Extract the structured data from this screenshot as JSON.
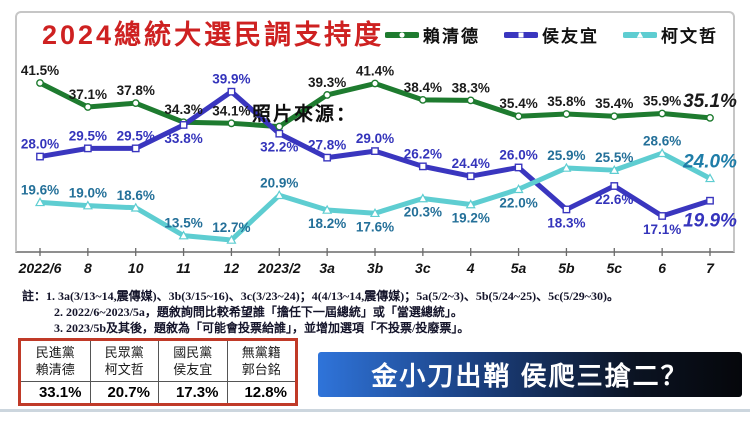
{
  "title": "2024總統大選民調支持度",
  "watermark": "照片來源：",
  "chart_data": {
    "type": "line",
    "title": "2024總統大選民調支持度",
    "categories": [
      "2022/6",
      "8",
      "10",
      "11",
      "12",
      "2023/2",
      "3a",
      "3b",
      "3c",
      "4",
      "5a",
      "5b",
      "5c",
      "6",
      "7"
    ],
    "series": [
      {
        "name": "賴清德",
        "color": "#1e7b2f",
        "label_color": "#1b1b1b",
        "final_label_color": "#1b1b1b",
        "marker": "circle",
        "values": [
          41.5,
          37.1,
          37.8,
          34.3,
          34.1,
          33.5,
          39.3,
          41.4,
          38.4,
          38.3,
          35.4,
          35.8,
          35.4,
          35.9,
          35.1
        ],
        "label_sides": [
          "a",
          "a",
          "a",
          "a",
          "a",
          "a",
          "a",
          "a",
          "a",
          "a",
          "a",
          "a",
          "a",
          "a",
          "a"
        ],
        "hidden_label_indices": [
          5
        ]
      },
      {
        "name": "侯友宜",
        "color": "#3a36bf",
        "label_color": "#3434bb",
        "final_label_color": "#3534bd",
        "marker": "square",
        "values": [
          28.0,
          29.5,
          29.5,
          33.8,
          39.9,
          32.2,
          27.8,
          29.0,
          26.2,
          24.4,
          26.0,
          18.3,
          22.6,
          17.1,
          19.9
        ],
        "label_sides": [
          "a",
          "a",
          "a",
          "b",
          "a",
          "b",
          "a",
          "a",
          "a",
          "a",
          "a",
          "b",
          "b",
          "b",
          "b"
        ],
        "hidden_label_indices": []
      },
      {
        "name": "柯文哲",
        "color": "#5ecdd1",
        "label_color": "#247099",
        "final_label_color": "#1f7da8",
        "marker": "triangle",
        "values": [
          19.6,
          19.0,
          18.6,
          13.5,
          12.7,
          20.9,
          18.2,
          17.6,
          20.3,
          19.2,
          22.0,
          25.9,
          25.5,
          28.6,
          24.0
        ],
        "label_sides": [
          "a",
          "a",
          "a",
          "a",
          "a",
          "a",
          "b",
          "b",
          "b",
          "b",
          "b",
          "a",
          "a",
          "a",
          "a"
        ],
        "hidden_label_indices": []
      }
    ],
    "ylim": [
      10,
      45
    ],
    "grid": false,
    "legend_position": "top-right",
    "y_axis_labels": false
  },
  "notes": {
    "line1": "註：1. 3a(3/13~14,震傳媒)、3b(3/15~16)、3c(3/23~24)；4(4/13~14,震傳媒)；5a(5/2~3)、5b(5/24~25)、5c(5/29~30)。",
    "line2": "2. 2022/6~2023/5a，題敘詢問比較希望誰「擔任下一屆總統」或「當選總統」。",
    "line3": "3. 2023/5b及其後，題敘為「可能會投票給誰」，並增加選項「不投票/投廢票」。"
  },
  "summary_table": {
    "columns": [
      {
        "party": "民進黨",
        "candidate": "賴清德",
        "value": "33.1%"
      },
      {
        "party": "民眾黨",
        "candidate": "柯文哲",
        "value": "20.7%"
      },
      {
        "party": "國民黨",
        "candidate": "侯友宜",
        "value": "17.3%"
      },
      {
        "party": "無黨籍",
        "candidate": "郭台銘",
        "value": "12.8%"
      }
    ]
  },
  "banner": {
    "text": "金小刀出鞘 侯爬三搶二？"
  },
  "colors": {
    "title": "#ce2121",
    "lai_green": "#1e7b2f",
    "hou_blue": "#3a36bf",
    "ko_cyan": "#5ecdd1",
    "table_border": "#c03a28",
    "banner_gradient_start": "#2f74da",
    "banner_gradient_end": "#05070b"
  }
}
